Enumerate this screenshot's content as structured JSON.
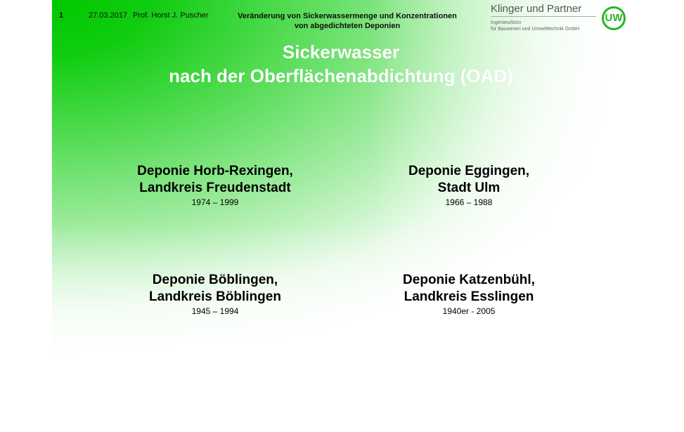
{
  "header": {
    "slide_number": "1",
    "date": "27.03.2017",
    "author": "Prof. Horst J. Puscher",
    "subject_line1": "Veränderung von Sickerwassermenge und Konzentrationen",
    "subject_line2": "von abgedichteten Deponien"
  },
  "logo": {
    "company": "Klinger und Partner",
    "line1": "Ingenieurbüro",
    "line2": "für Bauwesen und Umwelttechnik GmbH",
    "badge": "UW",
    "color": "#22b822"
  },
  "title": {
    "line1": "Sickerwasser",
    "line2": "nach der Oberflächenabdichtung (OAD)"
  },
  "sites": [
    {
      "name1": "Deponie Horb-Rexingen,",
      "name2": "Landkreis Freudenstadt",
      "years": "1974 – 1999"
    },
    {
      "name1": "Deponie Eggingen,",
      "name2": "Stadt Ulm",
      "years": "1966 – 1988"
    },
    {
      "name1": "Deponie Böblingen,",
      "name2": "Landkreis Böblingen",
      "years": "1945 – 1994"
    },
    {
      "name1": "Deponie Katzenbühl,",
      "name2": "Landkreis Esslingen",
      "years": "1940er - 2005"
    }
  ]
}
